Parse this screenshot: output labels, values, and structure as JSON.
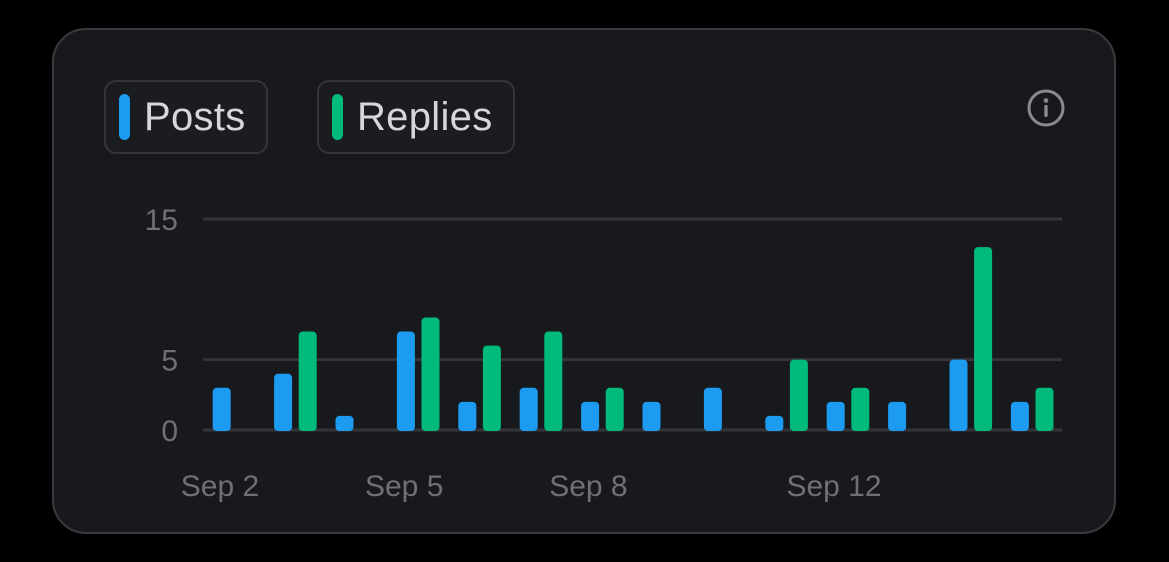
{
  "legend": {
    "posts_label": "Posts",
    "replies_label": "Replies"
  },
  "info_icon": "info-icon",
  "colors": {
    "posts": "#1d9bf0",
    "replies": "#00ba7c",
    "gridline": "#34353a",
    "card_bg": "#18191c"
  },
  "chart_data": {
    "type": "bar",
    "categories": [
      "Sep 2",
      "Sep 3",
      "Sep 4",
      "Sep 5",
      "Sep 6",
      "Sep 7",
      "Sep 8",
      "Sep 9",
      "Sep 10",
      "Sep 11",
      "Sep 12",
      "Sep 13",
      "Sep 14",
      "Sep 15"
    ],
    "x_tick_labels": [
      "Sep 2",
      "Sep 5",
      "Sep 8",
      "Sep 12"
    ],
    "series": [
      {
        "name": "Posts",
        "values": [
          3,
          4,
          1,
          7,
          2,
          3,
          2,
          2,
          3,
          1,
          2,
          2,
          5,
          2
        ]
      },
      {
        "name": "Replies",
        "values": [
          0,
          7,
          0,
          8,
          6,
          7,
          3,
          0,
          0,
          5,
          3,
          0,
          13,
          3
        ]
      }
    ],
    "y_ticks": [
      0,
      5,
      15
    ],
    "ylim": [
      0,
      15
    ],
    "grid": true,
    "legend": "top-left"
  }
}
